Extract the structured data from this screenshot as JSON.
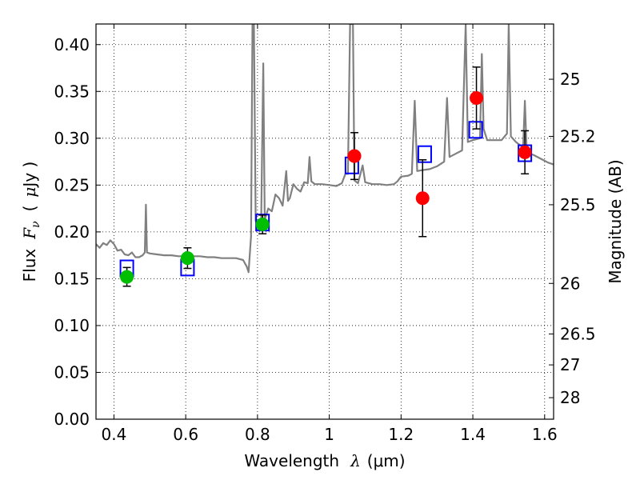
{
  "chart_data": {
    "type": "scatter",
    "xlabel": "Wavelength",
    "xlabel_symbol": "λ",
    "xlabel_unit": "(μm)",
    "ylabel": "Flux",
    "ylabel_symbol": "F",
    "ylabel_subscript": "ν",
    "ylabel_unit_open": "(",
    "ylabel_unit_mu": "μ",
    "ylabel_unit_rest": "Jy )",
    "y2label": "Magnitude (AB)",
    "xlim": [
      0.35,
      1.625
    ],
    "ylim": [
      0.0,
      0.422
    ],
    "grid": true,
    "x_ticks": [
      0.4,
      0.6,
      0.8,
      1.0,
      1.2,
      1.4,
      1.6
    ],
    "x_tick_labels": [
      "0.4",
      "0.6",
      "0.8",
      "1",
      "1.2",
      "1.4",
      "1.6"
    ],
    "y_ticks": [
      0.0,
      0.05,
      0.1,
      0.15,
      0.2,
      0.25,
      0.3,
      0.35,
      0.4
    ],
    "y_tick_labels": [
      "0.00",
      "0.05",
      "0.10",
      "0.15",
      "0.20",
      "0.25",
      "0.30",
      "0.35",
      "0.40"
    ],
    "y2_ticks": [
      {
        "label": "25",
        "flux": 0.363
      },
      {
        "label": "25.2",
        "flux": 0.302
      },
      {
        "label": "25.5",
        "flux": 0.229
      },
      {
        "label": "26",
        "flux": 0.145
      },
      {
        "label": "26.5",
        "flux": 0.091
      },
      {
        "label": "27",
        "flux": 0.058
      },
      {
        "label": "28",
        "flux": 0.023
      }
    ],
    "series": [
      {
        "type": "line",
        "color": "#808080",
        "points": [
          [
            0.35,
            0.187
          ],
          [
            0.36,
            0.183
          ],
          [
            0.37,
            0.188
          ],
          [
            0.38,
            0.186
          ],
          [
            0.39,
            0.191
          ],
          [
            0.4,
            0.187
          ],
          [
            0.41,
            0.18
          ],
          [
            0.42,
            0.181
          ],
          [
            0.43,
            0.176
          ],
          [
            0.44,
            0.175
          ],
          [
            0.45,
            0.178
          ],
          [
            0.46,
            0.173
          ],
          [
            0.47,
            0.173
          ],
          [
            0.48,
            0.175
          ],
          [
            0.486,
            0.178
          ],
          [
            0.489,
            0.229
          ],
          [
            0.492,
            0.178
          ],
          [
            0.5,
            0.177
          ],
          [
            0.52,
            0.176
          ],
          [
            0.54,
            0.175
          ],
          [
            0.56,
            0.175
          ],
          [
            0.58,
            0.174
          ],
          [
            0.6,
            0.174
          ],
          [
            0.62,
            0.174
          ],
          [
            0.64,
            0.174
          ],
          [
            0.66,
            0.173
          ],
          [
            0.68,
            0.173
          ],
          [
            0.7,
            0.172
          ],
          [
            0.72,
            0.172
          ],
          [
            0.74,
            0.172
          ],
          [
            0.76,
            0.17
          ],
          [
            0.77,
            0.163
          ],
          [
            0.775,
            0.157
          ],
          [
            0.782,
            0.195
          ],
          [
            0.786,
            0.422
          ],
          [
            0.79,
            0.422
          ],
          [
            0.795,
            0.212
          ],
          [
            0.8,
            0.209
          ],
          [
            0.81,
            0.208
          ],
          [
            0.816,
            0.38
          ],
          [
            0.82,
            0.213
          ],
          [
            0.83,
            0.225
          ],
          [
            0.84,
            0.222
          ],
          [
            0.85,
            0.24
          ],
          [
            0.86,
            0.236
          ],
          [
            0.87,
            0.228
          ],
          [
            0.88,
            0.265
          ],
          [
            0.885,
            0.233
          ],
          [
            0.89,
            0.236
          ],
          [
            0.9,
            0.251
          ],
          [
            0.91,
            0.246
          ],
          [
            0.92,
            0.243
          ],
          [
            0.93,
            0.253
          ],
          [
            0.94,
            0.252
          ],
          [
            0.945,
            0.28
          ],
          [
            0.95,
            0.254
          ],
          [
            0.96,
            0.251
          ],
          [
            0.98,
            0.251
          ],
          [
            1.0,
            0.25
          ],
          [
            1.02,
            0.249
          ],
          [
            1.035,
            0.252
          ],
          [
            1.045,
            0.262
          ],
          [
            1.052,
            0.262
          ],
          [
            1.058,
            0.422
          ],
          [
            1.062,
            0.422
          ],
          [
            1.066,
            0.422
          ],
          [
            1.07,
            0.255
          ],
          [
            1.08,
            0.252
          ],
          [
            1.093,
            0.271
          ],
          [
            1.1,
            0.253
          ],
          [
            1.12,
            0.251
          ],
          [
            1.14,
            0.251
          ],
          [
            1.16,
            0.25
          ],
          [
            1.18,
            0.251
          ],
          [
            1.19,
            0.254
          ],
          [
            1.2,
            0.259
          ],
          [
            1.22,
            0.26
          ],
          [
            1.23,
            0.262
          ],
          [
            1.238,
            0.34
          ],
          [
            1.245,
            0.265
          ],
          [
            1.26,
            0.266
          ],
          [
            1.28,
            0.267
          ],
          [
            1.3,
            0.27
          ],
          [
            1.32,
            0.275
          ],
          [
            1.328,
            0.343
          ],
          [
            1.335,
            0.28
          ],
          [
            1.35,
            0.283
          ],
          [
            1.37,
            0.287
          ],
          [
            1.38,
            0.422
          ],
          [
            1.386,
            0.296
          ],
          [
            1.4,
            0.298
          ],
          [
            1.42,
            0.3
          ],
          [
            1.425,
            0.39
          ],
          [
            1.43,
            0.31
          ],
          [
            1.44,
            0.298
          ],
          [
            1.46,
            0.298
          ],
          [
            1.48,
            0.298
          ],
          [
            1.495,
            0.305
          ],
          [
            1.5,
            0.422
          ],
          [
            1.506,
            0.302
          ],
          [
            1.52,
            0.296
          ],
          [
            1.54,
            0.29
          ],
          [
            1.545,
            0.34
          ],
          [
            1.55,
            0.285
          ],
          [
            1.57,
            0.282
          ],
          [
            1.59,
            0.278
          ],
          [
            1.61,
            0.274
          ],
          [
            1.625,
            0.272
          ]
        ]
      },
      {
        "type": "scatter",
        "marker": "square",
        "color": "#0000ff",
        "points": [
          [
            0.436,
            0.161
          ],
          [
            0.605,
            0.162
          ],
          [
            0.814,
            0.21
          ],
          [
            1.063,
            0.271
          ],
          [
            1.266,
            0.283
          ],
          [
            1.408,
            0.309
          ],
          [
            1.545,
            0.284
          ]
        ]
      },
      {
        "type": "scatter",
        "marker": "circle",
        "color": "#00bf00",
        "points": [
          {
            "x": 0.436,
            "y": 0.152,
            "err": 0.01
          },
          {
            "x": 0.605,
            "y": 0.172,
            "err": 0.011
          },
          {
            "x": 0.814,
            "y": 0.208,
            "err": 0.01
          }
        ]
      },
      {
        "type": "scatter",
        "marker": "circle",
        "color": "#ff0000",
        "points": [
          {
            "x": 1.07,
            "y": 0.281,
            "err": 0.025
          },
          {
            "x": 1.26,
            "y": 0.236,
            "err": 0.041
          },
          {
            "x": 1.41,
            "y": 0.343,
            "err": 0.033
          },
          {
            "x": 1.545,
            "y": 0.285,
            "err": 0.023
          }
        ]
      }
    ]
  }
}
